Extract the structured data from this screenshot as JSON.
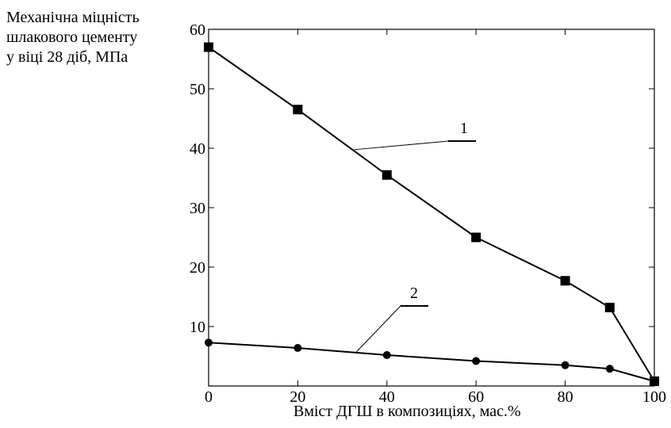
{
  "chart_data": {
    "type": "line",
    "ylabel": [
      "Механічна міцність",
      "шлакового цементу",
      "у віці 28 діб, МПа"
    ],
    "xlabel": "Вміст ДГШ в композиціях, мас.%",
    "xlim": [
      0,
      100
    ],
    "ylim": [
      0,
      60
    ],
    "xticks": [
      0,
      20,
      40,
      60,
      80,
      100
    ],
    "yticks": [
      10,
      20,
      30,
      40,
      50,
      60
    ],
    "grid": false,
    "series": [
      {
        "name": "1",
        "marker": "square",
        "x": [
          0,
          20,
          40,
          60,
          80,
          90,
          100
        ],
        "y": [
          57,
          46.5,
          35.5,
          25,
          17.7,
          13.2,
          0.8
        ]
      },
      {
        "name": "2",
        "marker": "circle",
        "x": [
          0,
          20,
          40,
          60,
          80,
          90,
          100
        ],
        "y": [
          7.3,
          6.4,
          5.2,
          4.2,
          3.5,
          2.9,
          0.8
        ]
      }
    ]
  }
}
